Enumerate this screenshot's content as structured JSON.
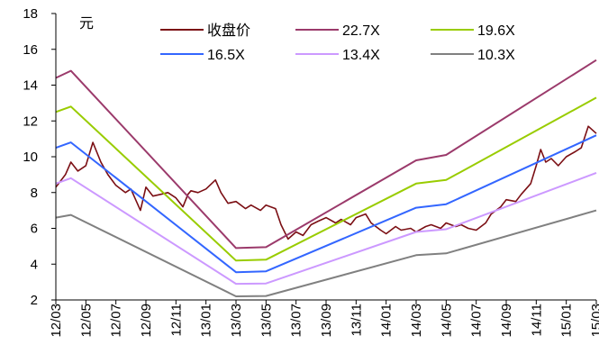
{
  "chart_data": {
    "type": "line",
    "unit_label": "元",
    "ylim": [
      2,
      18
    ],
    "yticks": [
      2,
      4,
      6,
      8,
      10,
      12,
      14,
      16,
      18
    ],
    "xlim": [
      "2012-03",
      "2015-03"
    ],
    "xticks": [
      "12/03",
      "12/05",
      "12/07",
      "12/09",
      "12/11",
      "13/01",
      "13/03",
      "13/05",
      "13/07",
      "13/09",
      "13/11",
      "14/01",
      "14/03",
      "14/05",
      "14/07",
      "14/09",
      "14/11",
      "15/01",
      "15/03"
    ],
    "legend": {
      "placement": "top",
      "columns": 3
    },
    "grid": false,
    "series": [
      {
        "name": "收盘价",
        "color": "#7B0F14",
        "kind": "price",
        "points": [
          [
            "2012-03",
            8.3
          ],
          [
            "2012-03-20",
            9.0
          ],
          [
            "2012-04",
            9.7
          ],
          [
            "2012-04-15",
            9.2
          ],
          [
            "2012-05",
            9.5
          ],
          [
            "2012-05-15",
            10.8
          ],
          [
            "2012-06",
            9.7
          ],
          [
            "2012-06-15",
            9.0
          ],
          [
            "2012-07",
            8.4
          ],
          [
            "2012-07-20",
            8.0
          ],
          [
            "2012-08",
            8.2
          ],
          [
            "2012-08-20",
            7.0
          ],
          [
            "2012-09",
            8.3
          ],
          [
            "2012-09-15",
            7.8
          ],
          [
            "2012-10",
            7.9
          ],
          [
            "2012-10-15",
            8.0
          ],
          [
            "2012-11",
            7.7
          ],
          [
            "2012-11-15",
            7.2
          ],
          [
            "2012-11-25",
            7.9
          ],
          [
            "2012-12",
            8.1
          ],
          [
            "2012-12-15",
            8.0
          ],
          [
            "2013-01",
            8.2
          ],
          [
            "2013-01-20",
            8.7
          ],
          [
            "2013-02",
            8.0
          ],
          [
            "2013-02-15",
            7.4
          ],
          [
            "2013-03",
            7.5
          ],
          [
            "2013-03-20",
            7.1
          ],
          [
            "2013-04",
            7.3
          ],
          [
            "2013-04-20",
            7.0
          ],
          [
            "2013-05",
            7.3
          ],
          [
            "2013-05-20",
            7.1
          ],
          [
            "2013-06",
            6.2
          ],
          [
            "2013-06-15",
            5.4
          ],
          [
            "2013-07",
            5.8
          ],
          [
            "2013-07-15",
            5.6
          ],
          [
            "2013-08",
            6.2
          ],
          [
            "2013-08-15",
            6.4
          ],
          [
            "2013-09",
            6.6
          ],
          [
            "2013-09-20",
            6.3
          ],
          [
            "2013-10",
            6.5
          ],
          [
            "2013-10-20",
            6.2
          ],
          [
            "2013-11",
            6.6
          ],
          [
            "2013-11-20",
            6.8
          ],
          [
            "2013-12",
            6.3
          ],
          [
            "2013-12-20",
            5.9
          ],
          [
            "2014-01",
            5.7
          ],
          [
            "2014-01-20",
            6.1
          ],
          [
            "2014-02",
            5.9
          ],
          [
            "2014-02-20",
            6.0
          ],
          [
            "2014-03",
            5.8
          ],
          [
            "2014-03-20",
            6.1
          ],
          [
            "2014-04",
            6.2
          ],
          [
            "2014-04-20",
            6.0
          ],
          [
            "2014-05",
            6.3
          ],
          [
            "2014-05-20",
            6.1
          ],
          [
            "2014-06",
            6.2
          ],
          [
            "2014-06-15",
            6.0
          ],
          [
            "2014-07",
            5.9
          ],
          [
            "2014-07-20",
            6.3
          ],
          [
            "2014-08",
            6.8
          ],
          [
            "2014-08-20",
            7.2
          ],
          [
            "2014-09",
            7.6
          ],
          [
            "2014-09-20",
            7.5
          ],
          [
            "2014-10",
            7.9
          ],
          [
            "2014-10-20",
            8.5
          ],
          [
            "2014-11",
            9.5
          ],
          [
            "2014-11-10",
            10.4
          ],
          [
            "2014-11-20",
            9.7
          ],
          [
            "2014-12",
            9.9
          ],
          [
            "2014-12-15",
            9.5
          ],
          [
            "2015-01",
            10.0
          ],
          [
            "2015-01-20",
            10.3
          ],
          [
            "2015-02",
            10.5
          ],
          [
            "2015-02-15",
            11.7
          ],
          [
            "2015-03",
            11.3
          ]
        ]
      },
      {
        "name": "22.7X",
        "color": "#9B3A6B",
        "kind": "band",
        "points": [
          [
            "2012-03",
            14.4
          ],
          [
            "2012-04",
            14.8
          ],
          [
            "2013-03",
            4.9
          ],
          [
            "2013-05",
            4.95
          ],
          [
            "2014-03",
            9.8
          ],
          [
            "2014-05",
            10.1
          ],
          [
            "2015-03",
            15.4
          ]
        ]
      },
      {
        "name": "19.6X",
        "color": "#99CC00",
        "kind": "band",
        "points": [
          [
            "2012-03",
            12.5
          ],
          [
            "2012-04",
            12.8
          ],
          [
            "2013-03",
            4.2
          ],
          [
            "2013-05",
            4.25
          ],
          [
            "2014-03",
            8.5
          ],
          [
            "2014-05",
            8.7
          ],
          [
            "2015-03",
            13.3
          ]
        ]
      },
      {
        "name": "16.5X",
        "color": "#3366FF",
        "kind": "band",
        "points": [
          [
            "2012-03",
            10.5
          ],
          [
            "2012-04",
            10.8
          ],
          [
            "2013-03",
            3.55
          ],
          [
            "2013-05",
            3.6
          ],
          [
            "2014-03",
            7.15
          ],
          [
            "2014-05",
            7.35
          ],
          [
            "2015-03",
            11.2
          ]
        ]
      },
      {
        "name": "13.4X",
        "color": "#CC99FF",
        "kind": "band",
        "points": [
          [
            "2012-03",
            8.5
          ],
          [
            "2012-04",
            8.8
          ],
          [
            "2013-03",
            2.9
          ],
          [
            "2013-05",
            2.92
          ],
          [
            "2014-03",
            5.8
          ],
          [
            "2014-05",
            5.95
          ],
          [
            "2015-03",
            9.1
          ]
        ]
      },
      {
        "name": "10.3X",
        "color": "#808080",
        "kind": "band",
        "points": [
          [
            "2012-03",
            6.6
          ],
          [
            "2012-04",
            6.75
          ],
          [
            "2013-03",
            2.2
          ],
          [
            "2013-05",
            2.22
          ],
          [
            "2014-03",
            4.5
          ],
          [
            "2014-05",
            4.6
          ],
          [
            "2015-03",
            7.0
          ]
        ]
      }
    ]
  }
}
